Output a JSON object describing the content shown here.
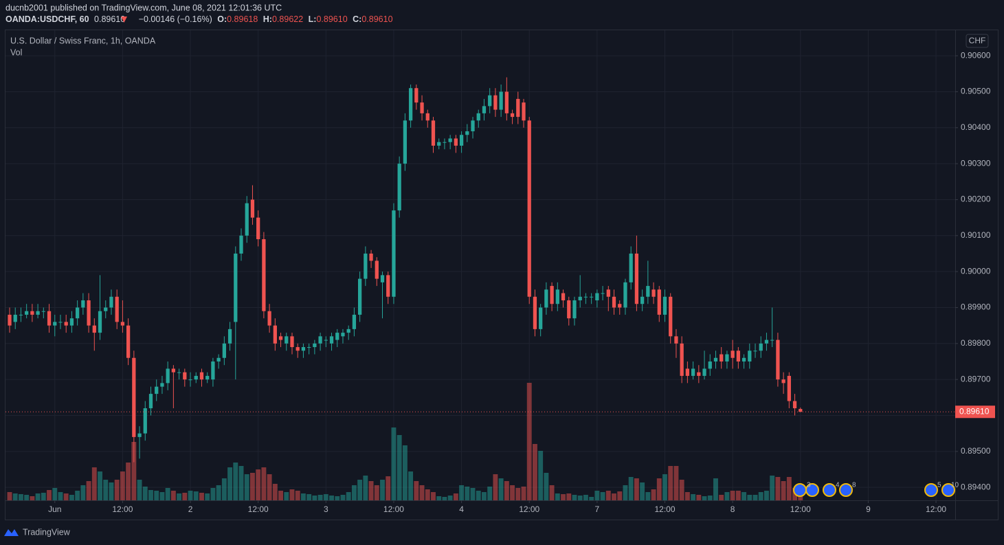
{
  "header": {
    "publisher": "ducnb2001 published on TradingView.com, June 08, 2021 12:01:36 UTC",
    "symbol": "OANDA:USDCHF, 60",
    "last": "0.89610",
    "change": "−0.00146 (−0.16%)",
    "o_label": "O:",
    "o": "0.89618",
    "h_label": "H:",
    "h": "0.89622",
    "l_label": "L:",
    "l": "0.89610",
    "c_label": "C:",
    "c": "0.89610"
  },
  "footer": {
    "brand": "TradingView"
  },
  "events": [
    "3",
    "4",
    "8",
    "5",
    "10"
  ],
  "chart_data": {
    "type": "candlestick",
    "title": "U.S. Dollar / Swiss Franc, 1h, OANDA",
    "volume_label": "Vol",
    "currency": "CHF",
    "price_label": "0.89610",
    "up_color": "#26a69a",
    "down_color": "#ef5350",
    "grid": true,
    "ylim": [
      0.89364,
      0.90669
    ],
    "yticks": [
      {
        "value": 0.894,
        "label": "0.89400"
      },
      {
        "value": 0.895,
        "label": "0.89500"
      },
      {
        "value": 0.896,
        "label": "0.89600"
      },
      {
        "value": 0.897,
        "label": "0.89700"
      },
      {
        "value": 0.898,
        "label": "0.89800"
      },
      {
        "value": 0.899,
        "label": "0.89900"
      },
      {
        "value": 0.9,
        "label": "0.90000"
      },
      {
        "value": 0.901,
        "label": "0.90100"
      },
      {
        "value": 0.902,
        "label": "0.90200"
      },
      {
        "value": 0.903,
        "label": "0.90300"
      },
      {
        "value": 0.904,
        "label": "0.90400"
      },
      {
        "value": 0.905,
        "label": "0.90500"
      },
      {
        "value": 0.906,
        "label": "0.90600"
      }
    ],
    "xlim": [
      -0.73,
      167.4
    ],
    "xticks": [
      {
        "value": 8,
        "label": "Jun"
      },
      {
        "value": 20,
        "label": "12:00"
      },
      {
        "value": 32,
        "label": "2"
      },
      {
        "value": 44,
        "label": "12:00"
      },
      {
        "value": 56,
        "label": "3"
      },
      {
        "value": 68,
        "label": "12:00"
      },
      {
        "value": 80,
        "label": "4"
      },
      {
        "value": 92,
        "label": "12:00"
      },
      {
        "value": 104,
        "label": "7"
      },
      {
        "value": 116,
        "label": "12:00"
      },
      {
        "value": 128,
        "label": "8"
      },
      {
        "value": 140,
        "label": "12:00"
      },
      {
        "value": 152,
        "label": "9"
      },
      {
        "value": 164,
        "label": "12:00"
      }
    ],
    "open": [
      0.8988,
      0.8986,
      0.8988,
      0.8988,
      0.8989,
      0.8988,
      0.8989,
      0.8989,
      0.8985,
      0.8986,
      0.8986,
      0.8985,
      0.8987,
      0.899,
      0.8992,
      0.8985,
      0.8983,
      0.8989,
      0.899,
      0.8993,
      0.8986,
      0.8985,
      0.8976,
      0.8954,
      0.8955,
      0.8962,
      0.8966,
      0.8968,
      0.8969,
      0.8973,
      0.8972,
      0.8972,
      0.897,
      0.897,
      0.8972,
      0.897,
      0.897,
      0.8975,
      0.8976,
      0.898,
      0.8986,
      0.9005,
      0.901,
      0.902,
      0.9015,
      0.9009,
      0.8989,
      0.8985,
      0.8982,
      0.898,
      0.8982,
      0.8979,
      0.8978,
      0.8979,
      0.8979,
      0.898,
      0.8981,
      0.898,
      0.8981,
      0.8982,
      0.8983,
      0.8984,
      0.8988,
      0.8998,
      0.9005,
      0.9003,
      0.8997,
      0.8999,
      0.8993,
      0.9017,
      0.903,
      0.9042,
      0.9051,
      0.9047,
      0.9044,
      0.9042,
      0.9035,
      0.9036,
      0.9036,
      0.9037,
      0.9035,
      0.9038,
      0.9039,
      0.9042,
      0.9044,
      0.9046,
      0.9049,
      0.9045,
      0.905,
      0.9044,
      0.9048,
      0.9047,
      0.9042,
      0.8993,
      0.8984,
      0.899,
      0.8996,
      0.8991,
      0.8994,
      0.8992,
      0.8987,
      0.8992,
      0.8993,
      0.8993,
      0.8992,
      0.8994,
      0.8995,
      0.8993,
      0.8991,
      0.899,
      0.8997,
      0.9005,
      0.8991,
      0.8993,
      0.8995,
      0.8995,
      0.8988,
      0.8993,
      0.8982,
      0.898,
      0.8973,
      0.8971,
      0.8972,
      0.8971,
      0.8973,
      0.8975,
      0.8977,
      0.8975,
      0.8978,
      0.8978,
      0.8975,
      0.8975,
      0.8978,
      0.8978,
      0.898,
      0.8981,
      0.8981,
      0.897,
      0.8971,
      0.8964,
      0.89618
    ],
    "high": [
      0.899,
      0.899,
      0.899,
      0.8991,
      0.8991,
      0.8991,
      0.899,
      0.8991,
      0.8988,
      0.8988,
      0.8988,
      0.8989,
      0.8992,
      0.8994,
      0.8994,
      0.8987,
      0.8999,
      0.8992,
      0.8995,
      0.8995,
      0.8992,
      0.8987,
      0.8978,
      0.8957,
      0.8964,
      0.8968,
      0.897,
      0.8971,
      0.8975,
      0.8974,
      0.8973,
      0.8973,
      0.8972,
      0.8972,
      0.8973,
      0.8972,
      0.8976,
      0.8977,
      0.8982,
      0.8986,
      0.9007,
      0.9012,
      0.9021,
      0.9024,
      0.9017,
      0.9011,
      0.8991,
      0.8987,
      0.8983,
      0.8983,
      0.8983,
      0.898,
      0.898,
      0.898,
      0.8981,
      0.8983,
      0.8982,
      0.8983,
      0.8984,
      0.8984,
      0.8985,
      0.899,
      0.9,
      0.9007,
      0.9006,
      0.9004,
      0.9,
      0.9,
      0.9019,
      0.9032,
      0.9044,
      0.9052,
      0.9052,
      0.9049,
      0.9045,
      0.9043,
      0.9037,
      0.9037,
      0.9038,
      0.9038,
      0.9039,
      0.9041,
      0.9043,
      0.9045,
      0.9048,
      0.9051,
      0.9051,
      0.9052,
      0.9054,
      0.9045,
      0.905,
      0.9048,
      0.9043,
      0.8995,
      0.8991,
      0.8997,
      0.8997,
      0.8997,
      0.8995,
      0.8993,
      0.8993,
      0.8999,
      0.8994,
      0.8994,
      0.8995,
      0.8996,
      0.8996,
      0.8995,
      0.8992,
      0.8998,
      0.9007,
      0.901,
      0.8995,
      0.9003,
      0.8997,
      0.8996,
      0.8995,
      0.8994,
      0.8984,
      0.8982,
      0.8975,
      0.8975,
      0.8974,
      0.8978,
      0.8977,
      0.8978,
      0.8979,
      0.8978,
      0.8981,
      0.8979,
      0.8977,
      0.898,
      0.898,
      0.8982,
      0.8983,
      0.899,
      0.8983,
      0.8972,
      0.8972,
      0.8966,
      0.89622
    ],
    "low": [
      0.8983,
      0.8984,
      0.8986,
      0.8987,
      0.8986,
      0.8987,
      0.8987,
      0.8983,
      0.8982,
      0.8984,
      0.8983,
      0.8983,
      0.8985,
      0.8988,
      0.8983,
      0.8978,
      0.8981,
      0.8987,
      0.8988,
      0.8984,
      0.8983,
      0.8974,
      0.8947,
      0.8948,
      0.8953,
      0.896,
      0.8964,
      0.8966,
      0.8967,
      0.8962,
      0.897,
      0.8968,
      0.8968,
      0.8969,
      0.8968,
      0.8969,
      0.8968,
      0.8973,
      0.8974,
      0.8978,
      0.897,
      0.9003,
      0.9008,
      0.9013,
      0.9007,
      0.8987,
      0.8983,
      0.8978,
      0.8979,
      0.8978,
      0.8977,
      0.8976,
      0.8976,
      0.8977,
      0.8977,
      0.8978,
      0.8979,
      0.8978,
      0.8979,
      0.898,
      0.8981,
      0.8982,
      0.8986,
      0.8996,
      0.9001,
      0.8996,
      0.8987,
      0.8991,
      0.8991,
      0.9015,
      0.9028,
      0.904,
      0.9045,
      0.9042,
      0.904,
      0.9033,
      0.9034,
      0.9034,
      0.9034,
      0.9033,
      0.9033,
      0.9036,
      0.9037,
      0.904,
      0.9042,
      0.9044,
      0.9043,
      0.9043,
      0.9042,
      0.9041,
      0.9041,
      0.904,
      0.8991,
      0.8982,
      0.8982,
      0.8988,
      0.8989,
      0.8989,
      0.899,
      0.8985,
      0.8985,
      0.899,
      0.8991,
      0.8991,
      0.899,
      0.8992,
      0.8989,
      0.8988,
      0.8988,
      0.8988,
      0.8995,
      0.8989,
      0.8989,
      0.8991,
      0.8991,
      0.8986,
      0.8986,
      0.898,
      0.8976,
      0.8969,
      0.8969,
      0.897,
      0.8969,
      0.897,
      0.8971,
      0.8973,
      0.8973,
      0.8973,
      0.8973,
      0.8973,
      0.8973,
      0.8973,
      0.8976,
      0.8976,
      0.8978,
      0.8979,
      0.8968,
      0.8966,
      0.8962,
      0.896,
      0.8961
    ],
    "close": [
      0.8985,
      0.8988,
      0.8988,
      0.8989,
      0.8988,
      0.8989,
      0.8989,
      0.8985,
      0.8986,
      0.8986,
      0.8985,
      0.8987,
      0.899,
      0.8992,
      0.8985,
      0.8983,
      0.8989,
      0.899,
      0.8993,
      0.8986,
      0.8985,
      0.8976,
      0.8954,
      0.8955,
      0.8962,
      0.8966,
      0.8968,
      0.8969,
      0.8973,
      0.8972,
      0.8972,
      0.897,
      0.897,
      0.8971,
      0.897,
      0.8971,
      0.8975,
      0.8976,
      0.898,
      0.8984,
      0.9005,
      0.901,
      0.9019,
      0.9015,
      0.9009,
      0.8989,
      0.8985,
      0.898,
      0.8981,
      0.8982,
      0.8979,
      0.8978,
      0.8979,
      0.8979,
      0.898,
      0.8982,
      0.8981,
      0.8982,
      0.8983,
      0.8983,
      0.8984,
      0.8988,
      0.8998,
      0.9005,
      0.9003,
      0.8998,
      0.8999,
      0.8993,
      0.9017,
      0.903,
      0.9042,
      0.9051,
      0.9047,
      0.9044,
      0.9042,
      0.9035,
      0.9036,
      0.9036,
      0.9037,
      0.9035,
      0.9038,
      0.9039,
      0.9042,
      0.9044,
      0.9046,
      0.9049,
      0.9045,
      0.905,
      0.9044,
      0.9043,
      0.9043,
      0.9042,
      0.8993,
      0.8984,
      0.899,
      0.8995,
      0.8991,
      0.8995,
      0.8992,
      0.8987,
      0.8992,
      0.8993,
      0.8993,
      0.8993,
      0.8994,
      0.8994,
      0.8993,
      0.899,
      0.899,
      0.8997,
      0.9005,
      0.8991,
      0.8993,
      0.8996,
      0.8993,
      0.8988,
      0.8993,
      0.8982,
      0.898,
      0.8971,
      0.8971,
      0.8973,
      0.8971,
      0.8973,
      0.8975,
      0.8976,
      0.8975,
      0.8977,
      0.8976,
      0.8975,
      0.8976,
      0.8978,
      0.8978,
      0.898,
      0.8981,
      0.8981,
      0.897,
      0.8969,
      0.8964,
      0.8962,
      0.8961
    ],
    "volume": [
      12,
      10,
      9,
      8,
      6,
      10,
      11,
      15,
      18,
      12,
      10,
      8,
      14,
      22,
      28,
      48,
      42,
      30,
      26,
      30,
      42,
      55,
      85,
      30,
      20,
      15,
      14,
      12,
      18,
      14,
      10,
      11,
      14,
      13,
      11,
      10,
      18,
      22,
      32,
      48,
      55,
      50,
      38,
      40,
      45,
      48,
      38,
      24,
      14,
      12,
      16,
      14,
      10,
      9,
      7,
      8,
      9,
      7,
      6,
      8,
      12,
      22,
      30,
      36,
      28,
      22,
      30,
      35,
      106,
      95,
      80,
      42,
      28,
      22,
      16,
      12,
      6,
      5,
      7,
      10,
      22,
      20,
      18,
      14,
      12,
      20,
      38,
      32,
      28,
      22,
      18,
      20,
      171,
      82,
      72,
      40,
      22,
      10,
      9,
      10,
      8,
      7,
      8,
      5,
      14,
      12,
      14,
      10,
      13,
      22,
      34,
      32,
      26,
      12,
      16,
      32,
      38,
      50,
      50,
      30,
      12,
      9,
      8,
      6,
      7,
      32,
      8,
      12,
      14,
      14,
      12,
      8,
      8,
      12,
      14,
      36,
      34,
      28,
      34,
      18,
      10
    ]
  }
}
